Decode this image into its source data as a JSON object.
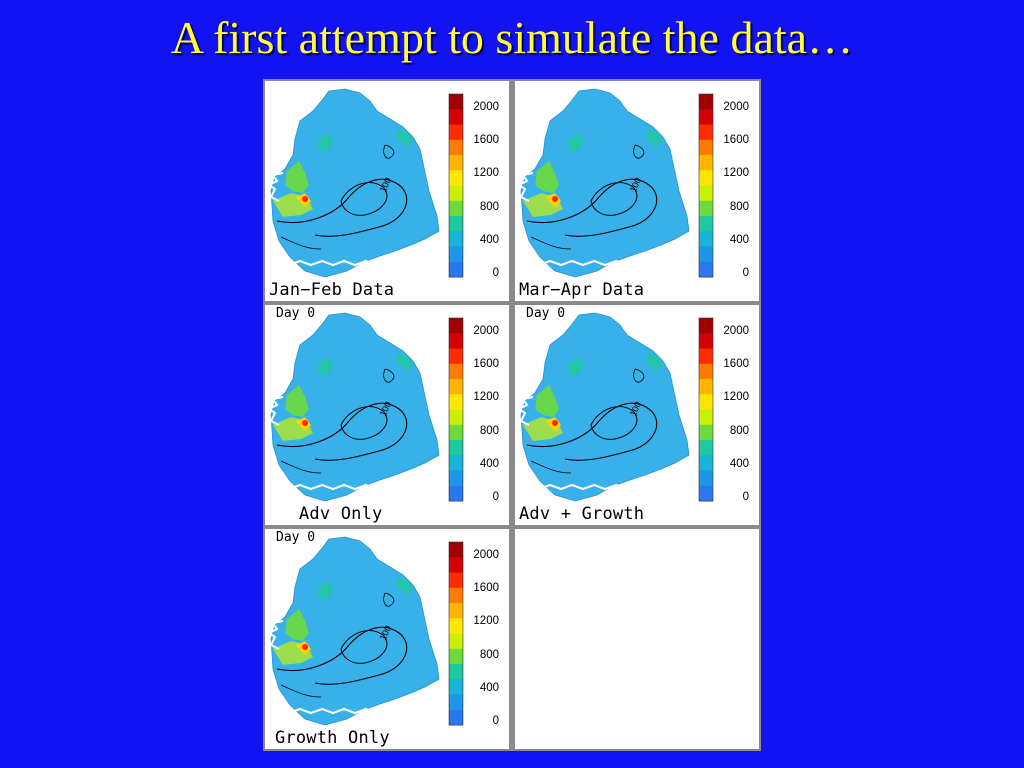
{
  "slide": {
    "title": "A first attempt to simulate the data…"
  },
  "colorbar": {
    "ticks": [
      "2000",
      "1600",
      "1200",
      "800",
      "400",
      "0"
    ],
    "colors": [
      "#a00000",
      "#d40000",
      "#ff2a00",
      "#ff7a00",
      "#ffb400",
      "#ffe600",
      "#c8f000",
      "#6cdc3c",
      "#20c8a0",
      "#18b4d8",
      "#1e96e6",
      "#2a78f0"
    ]
  },
  "map": {
    "contour_label": "100",
    "ocean_color": "#38b0ea",
    "coast_color": "#ffffff"
  },
  "panels": [
    {
      "label": "Jan−Feb Data",
      "day": ""
    },
    {
      "label": "Mar−Apr Data",
      "day": ""
    },
    {
      "label": "Adv Only",
      "day": "Day 0"
    },
    {
      "label": "Adv + Growth",
      "day": "Day 0"
    },
    {
      "label": "Growth Only",
      "day": "Day 0"
    }
  ]
}
